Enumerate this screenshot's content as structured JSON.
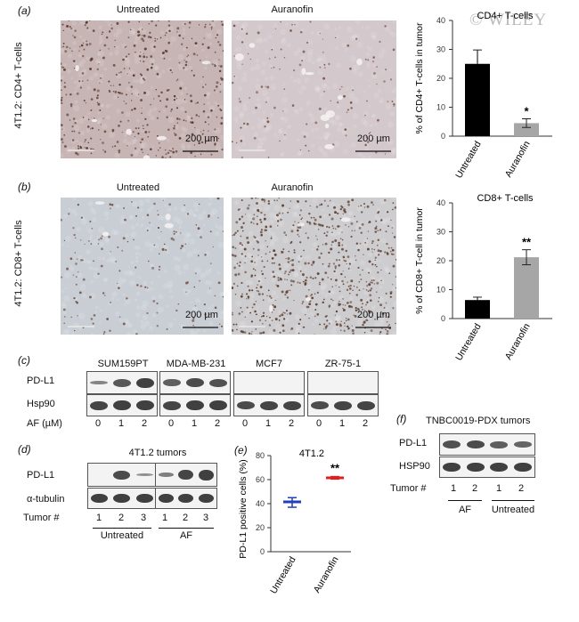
{
  "watermark": "© WILEY",
  "panel_a": {
    "letter": "(a)",
    "row_label": "4T1.2: CD4+ T-cells",
    "col_untreated": "Untreated",
    "col_auranofin": "Auranofin",
    "scale": "200 µm",
    "colors": {
      "tissue": "#c7b4b4"
    }
  },
  "panel_b": {
    "letter": "(b)",
    "row_label": "4T1.2: CD8+ T-cells",
    "col_untreated": "Untreated",
    "col_auranofin": "Auranofin",
    "scale": "200 µm",
    "colors": {
      "tissue": "#c9ced5"
    }
  },
  "panel_c": {
    "letter": "(c)",
    "cell_lines": [
      "SUM159PT",
      "MDA-MB-231",
      "MCF7",
      "ZR-75-1"
    ],
    "rows": [
      "PD-L1",
      "Hsp90"
    ],
    "af_label": "AF (µM)",
    "doses": [
      "0",
      "1",
      "2",
      "0",
      "1",
      "2",
      "0",
      "1",
      "2",
      "0",
      "1",
      "2"
    ]
  },
  "panel_d": {
    "letter": "(d)",
    "title": "4T1.2 tumors",
    "rows": [
      "PD-L1",
      "α-tubulin"
    ],
    "tumor_label": "Tumor #",
    "tumors": [
      "1",
      "2",
      "3",
      "1",
      "2",
      "3"
    ],
    "groups": [
      "Untreated",
      "AF"
    ]
  },
  "panel_e": {
    "letter": "(e)",
    "title": "4T1.2",
    "ylabel": "PD-L1 positive cells (%)",
    "significance": "**"
  },
  "panel_f": {
    "letter": "(f)",
    "title": "TNBC0019-PDX tumors",
    "rows": [
      "PD-L1",
      "HSP90"
    ],
    "tumor_label": "Tumor #",
    "tumors": [
      "1",
      "2",
      "1",
      "2"
    ],
    "groups": [
      "AF",
      "Untreated"
    ]
  },
  "chart_data": [
    {
      "type": "bar",
      "title": "CD4+ T-cells",
      "ylabel": "% of CD4+ T-cells in tumor",
      "categories": [
        "Untreated",
        "Auranofin"
      ],
      "values": [
        25,
        4.5
      ],
      "errors": [
        4.8,
        1.5
      ],
      "colors": [
        "#000000",
        "#a6a6a6"
      ],
      "significance": [
        "",
        "*"
      ],
      "ylim": [
        0,
        40
      ],
      "yticks": [
        "0",
        "10",
        "20",
        "30",
        "40"
      ]
    },
    {
      "type": "bar",
      "title": "CD8+ T-cells",
      "ylabel": "% of CD8+ T-cell in tumor",
      "categories": [
        "Untreated",
        "Auranofin"
      ],
      "values": [
        6.4,
        21.2
      ],
      "errors": [
        1.0,
        2.6
      ],
      "colors": [
        "#000000",
        "#a6a6a6"
      ],
      "significance": [
        "",
        "**"
      ],
      "ylim": [
        0,
        40
      ],
      "yticks": [
        "0",
        "10",
        "20",
        "30",
        "40"
      ]
    },
    {
      "type": "scatter",
      "title": "4T1.2",
      "ylabel": "PD-L1 positive cells (%)",
      "categories": [
        "Untreated",
        "Auranofin"
      ],
      "mean": [
        41.5,
        61.5
      ],
      "min": [
        37,
        60.5
      ],
      "max": [
        45,
        62.5
      ],
      "colors": [
        "#1f3fbf",
        "#e0201a"
      ],
      "ylim": [
        0,
        80
      ],
      "yticks": [
        "0",
        "20",
        "40",
        "60",
        "80"
      ]
    }
  ]
}
